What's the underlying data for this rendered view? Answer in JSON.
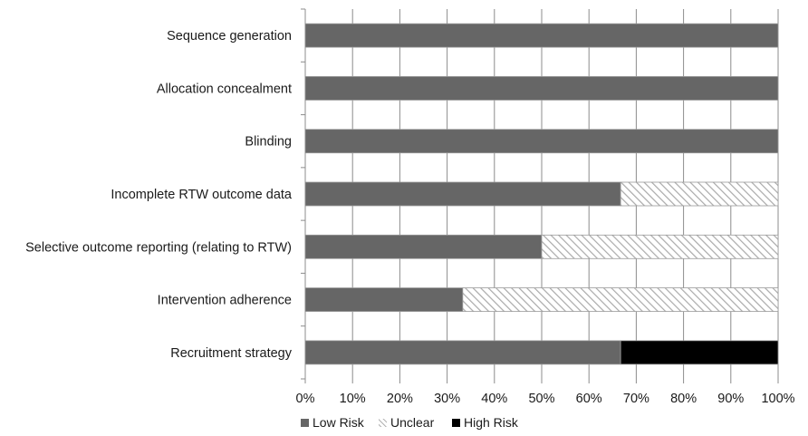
{
  "chart_data": {
    "type": "bar",
    "orientation": "horizontal",
    "stacked": true,
    "categories": [
      "Sequence generation",
      "Allocation concealment",
      "Blinding",
      "Incomplete RTW outcome data",
      "Selective outcome reporting (relating to RTW)",
      "Intervention adherence",
      "Recruitment strategy"
    ],
    "series": [
      {
        "name": "Low Risk",
        "color": "#666666",
        "pattern": "solid",
        "values": [
          100,
          100,
          100,
          66.7,
          50,
          33.3,
          66.7
        ]
      },
      {
        "name": "Unclear",
        "color": "#bbbbbb",
        "pattern": "diagonal-hatch",
        "values": [
          0,
          0,
          0,
          33.3,
          50,
          66.7,
          0
        ]
      },
      {
        "name": "High Risk",
        "color": "#000000",
        "pattern": "solid",
        "values": [
          0,
          0,
          0,
          0,
          0,
          0,
          33.3
        ]
      }
    ],
    "x_ticks": [
      "0%",
      "10%",
      "20%",
      "30%",
      "40%",
      "50%",
      "60%",
      "70%",
      "80%",
      "90%",
      "100%"
    ],
    "xlim": [
      0,
      100
    ],
    "grid": true,
    "legend_position": "bottom",
    "title": "",
    "xlabel": "",
    "ylabel": ""
  }
}
